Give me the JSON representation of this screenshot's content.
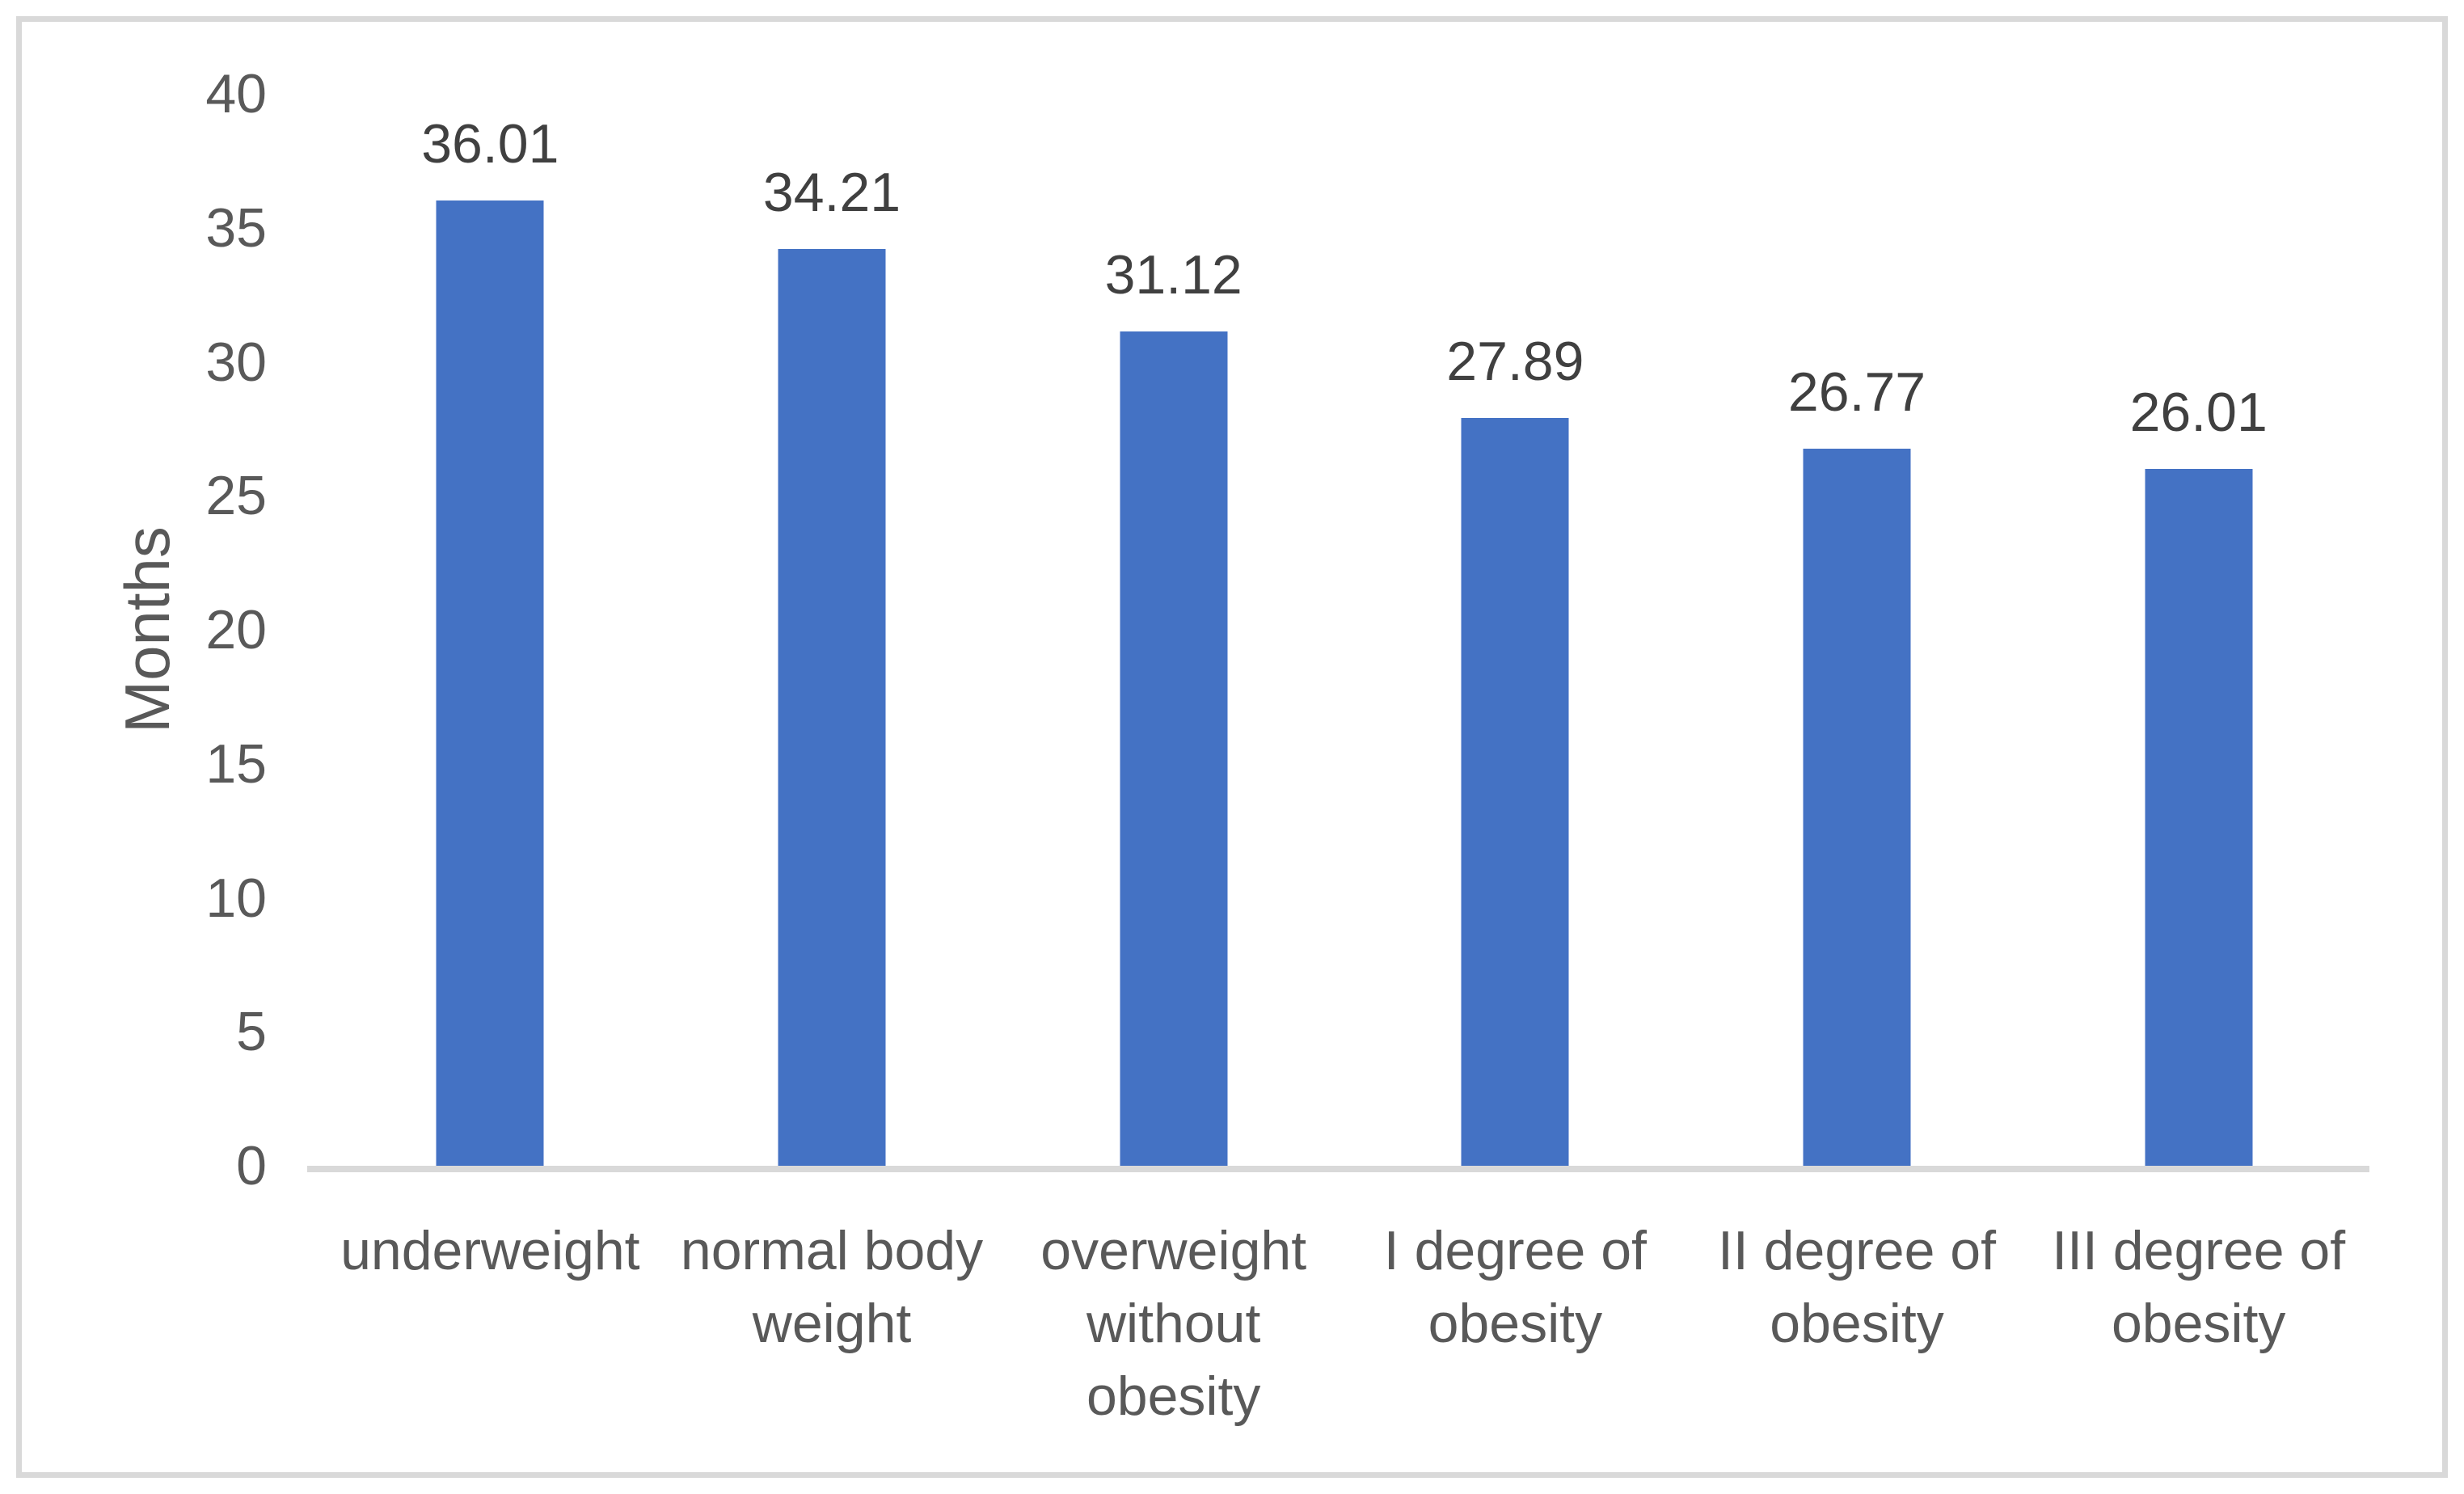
{
  "chart_data": {
    "type": "bar",
    "title": "",
    "xlabel": "",
    "ylabel": "Months",
    "categories": [
      "underweight",
      "normal body weight",
      "overweight without obesity",
      "I degree of obesity",
      "II degree of obesity",
      "III degree of obesity"
    ],
    "values": [
      36.01,
      34.21,
      31.12,
      27.89,
      26.77,
      26.01
    ],
    "value_labels": [
      "36.01",
      "34.21",
      "31.12",
      "27.89",
      "26.77",
      "26.01"
    ],
    "ylim": [
      0,
      40
    ],
    "yticks": [
      "0",
      "5",
      "10",
      "15",
      "20",
      "25",
      "30",
      "35",
      "40"
    ],
    "grid": false,
    "legend": "none",
    "colors": {
      "bar": "#4472C4",
      "axis_line": "#D9D9D9",
      "frame_border": "#D9D9D9",
      "tick_text": "#595959",
      "category_text": "#595959",
      "value_text": "#404040",
      "background": "#FFFFFF"
    }
  }
}
